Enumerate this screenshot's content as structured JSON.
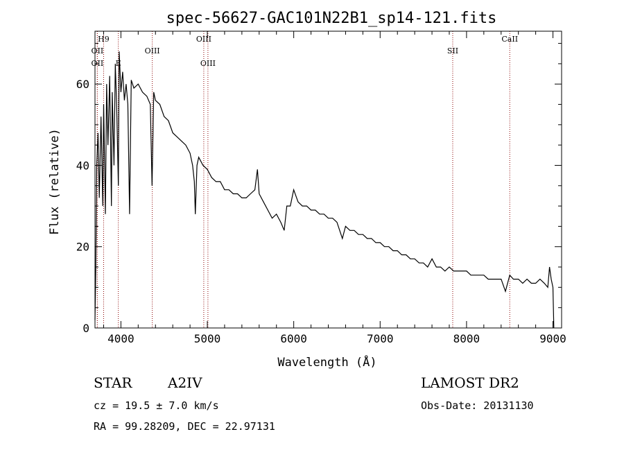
{
  "chart_data": {
    "type": "line",
    "title": "spec-56627-GAC101N22B1_sp14-121.fits",
    "xlabel": "Wavelength (Å)",
    "ylabel": "Flux (relative)",
    "xlim": [
      3700,
      9100
    ],
    "ylim": [
      0,
      73
    ],
    "xticks": [
      4000,
      5000,
      6000,
      7000,
      8000,
      9000
    ],
    "yticks": [
      0,
      20,
      40,
      60
    ],
    "grid": false,
    "series": [
      {
        "x": [
          3700,
          3710,
          3720,
          3735,
          3750,
          3770,
          3790,
          3800,
          3820,
          3835,
          3850,
          3870,
          3890,
          3900,
          3920,
          3935,
          3950,
          3970,
          3980,
          4000,
          4020,
          4040,
          4060,
          4080,
          4100,
          4120,
          4150,
          4200,
          4250,
          4300,
          4340,
          4360,
          4380,
          4400,
          4450,
          4500,
          4550,
          4600,
          4650,
          4700,
          4750,
          4800,
          4830,
          4850,
          4861,
          4880,
          4900,
          4950,
          5000,
          5050,
          5100,
          5150,
          5200,
          5250,
          5300,
          5350,
          5400,
          5450,
          5500,
          5550,
          5580,
          5600,
          5650,
          5700,
          5750,
          5800,
          5850,
          5890,
          5920,
          5960,
          6000,
          6050,
          6100,
          6150,
          6200,
          6250,
          6300,
          6350,
          6400,
          6450,
          6500,
          6563,
          6600,
          6650,
          6700,
          6750,
          6800,
          6850,
          6900,
          6950,
          7000,
          7050,
          7100,
          7150,
          7200,
          7250,
          7300,
          7350,
          7400,
          7450,
          7500,
          7550,
          7600,
          7650,
          7700,
          7750,
          7800,
          7850,
          7900,
          7950,
          8000,
          8050,
          8100,
          8150,
          8200,
          8250,
          8300,
          8350,
          8400,
          8450,
          8500,
          8542,
          8600,
          8650,
          8700,
          8750,
          8800,
          8850,
          8900,
          8940,
          8960,
          8980,
          9000,
          9010
        ],
        "y": [
          2,
          15,
          40,
          48,
          32,
          52,
          30,
          55,
          28,
          60,
          45,
          62,
          30,
          58,
          40,
          65,
          55,
          35,
          68,
          58,
          63,
          56,
          60,
          55,
          28,
          61,
          59,
          60,
          58,
          57,
          55,
          35,
          58,
          56,
          55,
          52,
          51,
          48,
          47,
          46,
          45,
          43,
          40,
          36,
          28,
          40,
          42,
          40,
          39,
          37,
          36,
          36,
          34,
          34,
          33,
          33,
          32,
          32,
          33,
          34,
          39,
          33,
          31,
          29,
          27,
          28,
          26,
          24,
          30,
          30,
          34,
          31,
          30,
          30,
          29,
          29,
          28,
          28,
          27,
          27,
          26,
          22,
          25,
          24,
          24,
          23,
          23,
          22,
          22,
          21,
          21,
          20,
          20,
          19,
          19,
          18,
          18,
          17,
          17,
          16,
          16,
          15,
          17,
          15,
          15,
          14,
          15,
          14,
          14,
          14,
          14,
          13,
          13,
          13,
          13,
          12,
          12,
          12,
          12,
          9,
          13,
          12,
          12,
          11,
          12,
          11,
          11,
          12,
          11,
          10,
          15,
          12,
          10,
          0
        ],
        "color": "#000000"
      }
    ],
    "annotations": [
      {
        "label": "OII",
        "wavelength": 3727,
        "row": 2
      },
      {
        "label": "OII",
        "wavelength": 3727,
        "row": 4
      },
      {
        "label": "H9",
        "wavelength": 3800,
        "row": 1
      },
      {
        "label": "E",
        "wavelength": 3970,
        "row": 4
      },
      {
        "label": "OIII",
        "wavelength": 4363,
        "row": 2
      },
      {
        "label": "OIII",
        "wavelength": 4959,
        "row": 1
      },
      {
        "label": "OIII",
        "wavelength": 5007,
        "row": 4
      },
      {
        "label": "SII",
        "wavelength": 7840,
        "row": 2
      },
      {
        "label": "CaII",
        "wavelength": 8500,
        "row": 1
      }
    ],
    "line_color": "#8b0000"
  },
  "info": {
    "object_type": "STAR",
    "subclass": "A2IV",
    "survey": "LAMOST DR2",
    "cz": "cz = 19.5 ± 7.0 km/s",
    "obs_date": "Obs-Date: 20131130",
    "coords": "RA =  99.28209, DEC =  22.97131"
  }
}
